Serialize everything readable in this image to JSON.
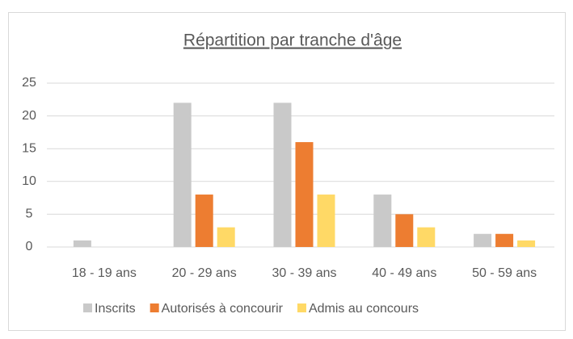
{
  "chart_data": {
    "type": "bar",
    "title": "Répartition par tranche d'âge",
    "categories": [
      "18 - 19 ans",
      "20 - 29 ans",
      "30 - 39 ans",
      "40 - 49 ans",
      "50 - 59 ans"
    ],
    "series": [
      {
        "name": "Inscrits",
        "color": "#c9c9c9",
        "values": [
          1,
          22,
          22,
          8,
          2
        ]
      },
      {
        "name": "Autorisés à concourir",
        "color": "#ed7d31",
        "values": [
          0,
          8,
          16,
          5,
          2
        ]
      },
      {
        "name": "Admis au concours",
        "color": "#ffd966",
        "values": [
          0,
          3,
          8,
          3,
          1
        ]
      }
    ],
    "ylim": [
      0,
      25
    ],
    "yticks": [
      0,
      5,
      10,
      15,
      20,
      25
    ],
    "grid": true,
    "legend": "bottom"
  }
}
